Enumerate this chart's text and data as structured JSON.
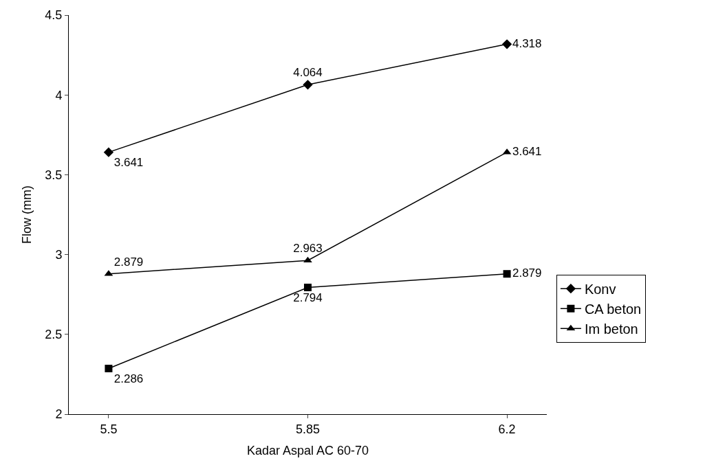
{
  "chart_data": {
    "type": "line",
    "xlabel": "Kadar Aspal AC 60-70",
    "ylabel": "Flow (mm)",
    "categories": [
      "5.5",
      "5.85",
      "6.2"
    ],
    "series": [
      {
        "name": "Konv",
        "color": "#000000",
        "marker": "diamond",
        "values": [
          3.641,
          4.064,
          4.318
        ]
      },
      {
        "name": "CA beton",
        "color": "#000000",
        "marker": "square",
        "values": [
          2.286,
          2.794,
          2.879
        ]
      },
      {
        "name": "Im beton",
        "color": "#000000",
        "marker": "triangle",
        "values": [
          2.879,
          2.963,
          3.641
        ]
      }
    ],
    "ylim": [
      2,
      4.5
    ],
    "yticks": [
      2,
      2.5,
      3,
      3.5,
      4,
      4.5
    ],
    "legend": "right",
    "data_labels": true,
    "line_style": "solid"
  }
}
